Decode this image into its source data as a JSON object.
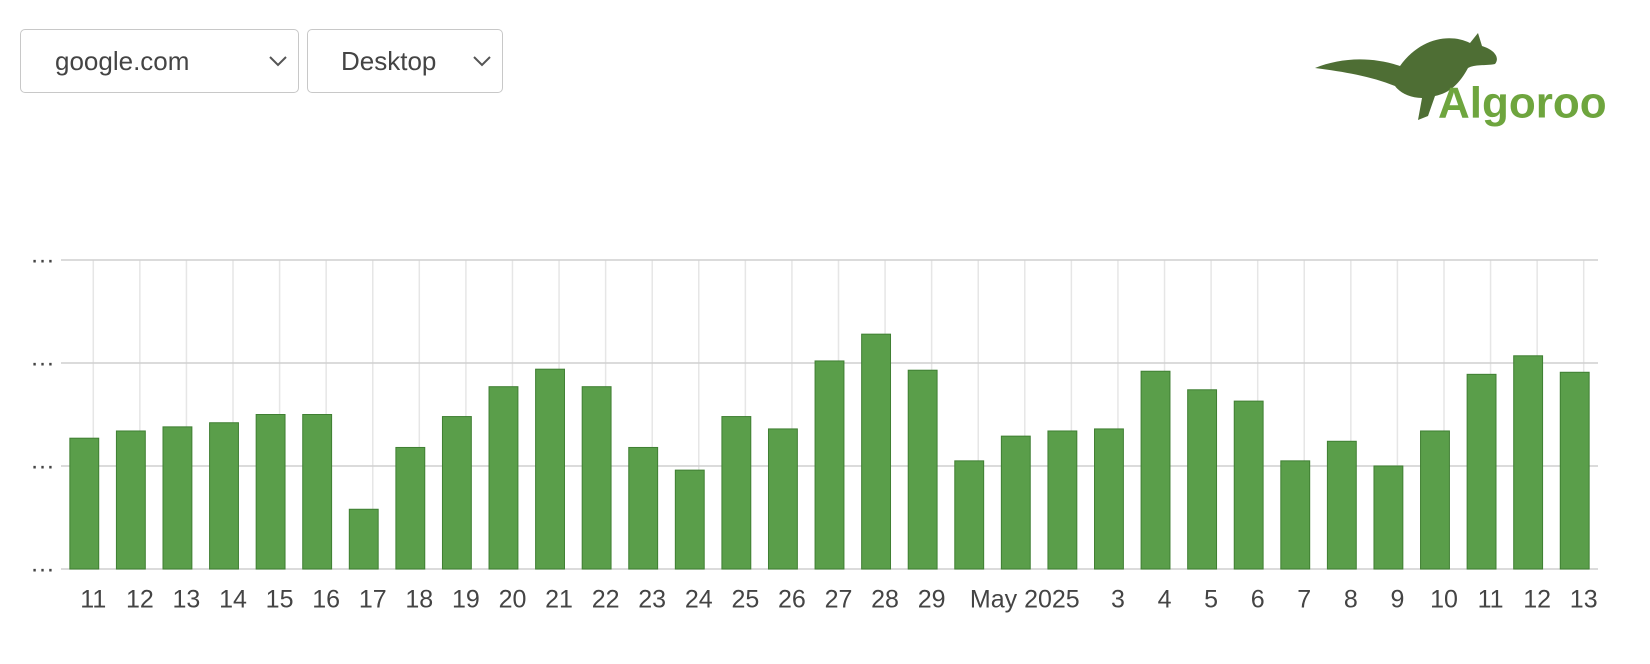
{
  "controls": {
    "site": "google.com",
    "device": "Desktop"
  },
  "logo": {
    "text": "Algoroo"
  },
  "chart_data": {
    "type": "bar",
    "color": "#5a9e4a",
    "categories": [
      "11",
      "12",
      "13",
      "14",
      "15",
      "16",
      "17",
      "18",
      "19",
      "20",
      "21",
      "22",
      "23",
      "24",
      "25",
      "26",
      "27",
      "28",
      "29",
      null,
      "May 2025",
      null,
      "3",
      "4",
      "5",
      "6",
      "7",
      "8",
      "9",
      "10",
      "11",
      "12",
      "13"
    ],
    "values": [
      1.27,
      1.34,
      1.38,
      1.42,
      1.5,
      1.5,
      0.58,
      1.18,
      1.48,
      1.77,
      1.94,
      1.77,
      1.18,
      0.96,
      1.48,
      1.36,
      2.02,
      2.28,
      1.93,
      1.05,
      1.29,
      1.34,
      1.36,
      1.92,
      1.74,
      1.63,
      1.05,
      1.24,
      1.0,
      1.34,
      1.89,
      2.07,
      1.91
    ],
    "ylim": [
      0,
      3
    ],
    "yticks": [
      {
        "value": 0,
        "label": "…"
      },
      {
        "value": 1,
        "label": "…"
      },
      {
        "value": 2,
        "label": "…"
      },
      {
        "value": 3,
        "label": "…"
      }
    ],
    "grid": true
  }
}
